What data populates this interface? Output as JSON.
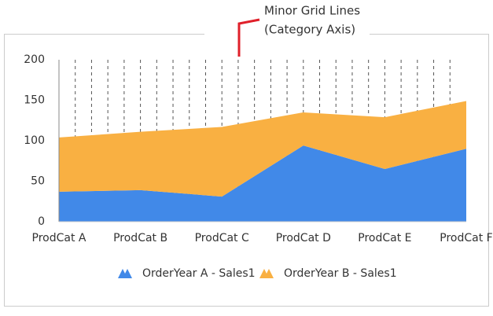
{
  "chart_data": {
    "type": "stacked_area",
    "annotation": [
      "Minor Grid Lines",
      "(Category Axis)"
    ],
    "categories": [
      "ProdCat A",
      "ProdCat B",
      "ProdCat C",
      "ProdCat D",
      "ProdCat E",
      "ProdCat F"
    ],
    "series": [
      {
        "name": "OrderYear A - Sales1",
        "color": "#4189e8",
        "values": [
          37,
          39,
          31,
          94,
          65,
          90
        ]
      },
      {
        "name": "OrderYear B - Sales1",
        "color": "#f9b042",
        "values": [
          67,
          72,
          86,
          41,
          64,
          59
        ]
      }
    ],
    "ylim": [
      0,
      200
    ],
    "yticks": [
      0,
      50,
      100,
      150,
      200
    ],
    "x_minor_grid": true,
    "legend": "bottom"
  }
}
